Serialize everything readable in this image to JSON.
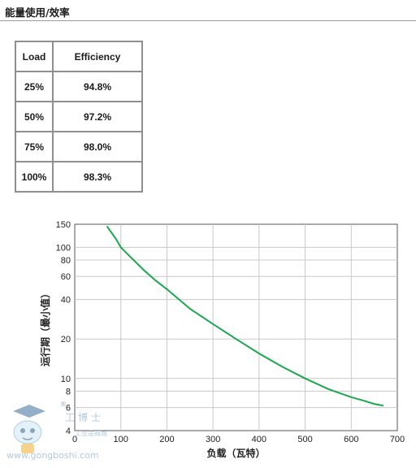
{
  "section": {
    "title": "能量使用/效率"
  },
  "table": {
    "headers": [
      "Load",
      "Efficiency"
    ],
    "rows": [
      [
        "25%",
        "94.8%"
      ],
      [
        "50%",
        "97.2%"
      ],
      [
        "75%",
        "98.0%"
      ],
      [
        "100%",
        "98.3%"
      ]
    ]
  },
  "chart_data": {
    "type": "line",
    "xlabel": "负载（瓦特）",
    "ylabel": "运行期（最小值）",
    "xlim": [
      0,
      700
    ],
    "ylim": [
      4,
      150
    ],
    "yscale": "log",
    "grid": true,
    "x_ticks": [
      "0",
      "100",
      "200",
      "300",
      "400",
      "500",
      "600",
      "700"
    ],
    "y_ticks": [
      "4",
      "6",
      "8",
      "10",
      "20",
      "40",
      "60",
      "80",
      "100",
      "150"
    ],
    "color": "#1aa84e",
    "series": [
      {
        "x": [
          70,
          90,
          100,
          120,
          150,
          175,
          200,
          250,
          300,
          350,
          400,
          450,
          500,
          550,
          600,
          625,
          650,
          670
        ],
        "y": [
          145,
          115,
          100,
          85,
          67,
          56,
          48,
          34,
          26,
          20,
          15.5,
          12.3,
          10,
          8.3,
          7.2,
          6.8,
          6.4,
          6.2
        ]
      }
    ]
  },
  "watermark": {
    "brand": "工博士",
    "tagline": "工业品商城",
    "url": "www.gongboshi.com",
    "registered": "®"
  }
}
